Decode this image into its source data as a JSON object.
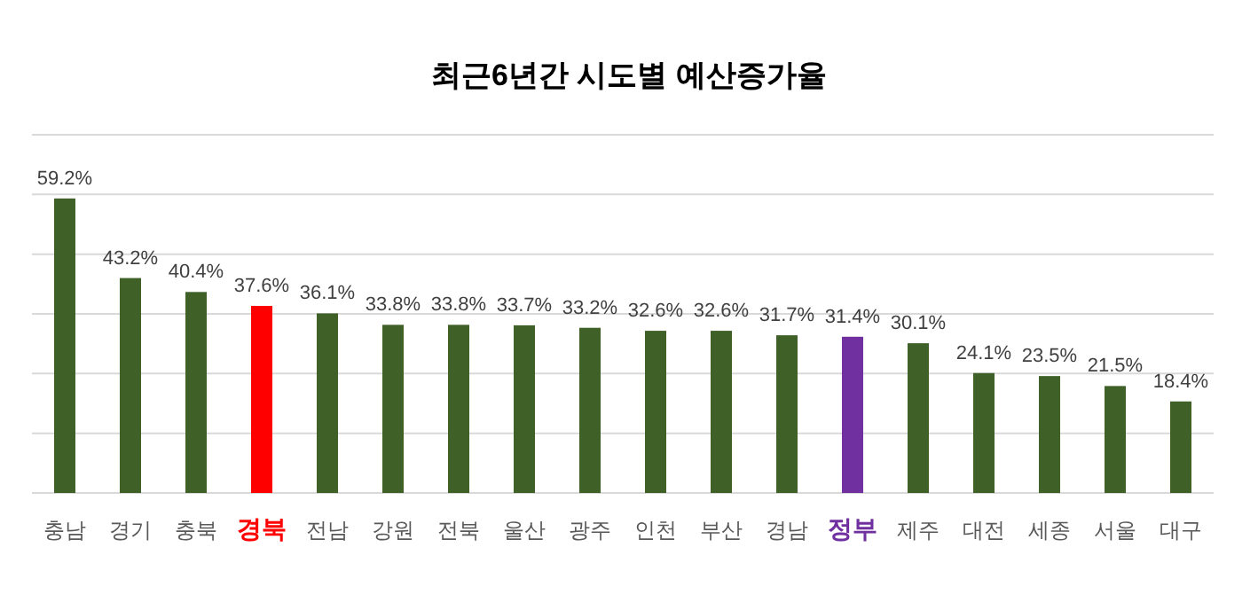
{
  "chart_data": {
    "type": "bar",
    "title": "최근6년간 시도별 예산증가율",
    "categories": [
      "충남",
      "경기",
      "충북",
      "경북",
      "전남",
      "강원",
      "전북",
      "울산",
      "광주",
      "인천",
      "부산",
      "경남",
      "정부",
      "제주",
      "대전",
      "세종",
      "서울",
      "대구"
    ],
    "values": [
      59.2,
      43.2,
      40.4,
      37.6,
      36.1,
      33.8,
      33.8,
      33.7,
      33.2,
      32.6,
      32.6,
      31.7,
      31.4,
      30.1,
      24.1,
      23.5,
      21.5,
      18.4
    ],
    "colors": [
      "#3f6128",
      "#3f6128",
      "#3f6128",
      "#ff0000",
      "#3f6128",
      "#3f6128",
      "#3f6128",
      "#3f6128",
      "#3f6128",
      "#3f6128",
      "#3f6128",
      "#3f6128",
      "#7030a0",
      "#3f6128",
      "#3f6128",
      "#3f6128",
      "#3f6128",
      "#3f6128"
    ],
    "value_labels": [
      "59.2%",
      "43.2%",
      "40.4%",
      "37.6%",
      "36.1%",
      "33.8%",
      "33.8%",
      "33.7%",
      "33.2%",
      "32.6%",
      "32.6%",
      "31.7%",
      "31.4%",
      "30.1%",
      "24.1%",
      "23.5%",
      "21.5%",
      "18.4%"
    ],
    "ylim": [
      0,
      72
    ],
    "yticks": [
      {
        "value": 0,
        "label": null
      },
      {
        "value": 12,
        "label": null
      },
      {
        "value": 24,
        "label": null
      },
      {
        "value": 36,
        "label": null
      },
      {
        "value": 48,
        "label": null
      },
      {
        "value": 60,
        "label": null
      },
      {
        "value": 72,
        "label": null
      }
    ],
    "grid": "y",
    "tick_labels": "x"
  }
}
